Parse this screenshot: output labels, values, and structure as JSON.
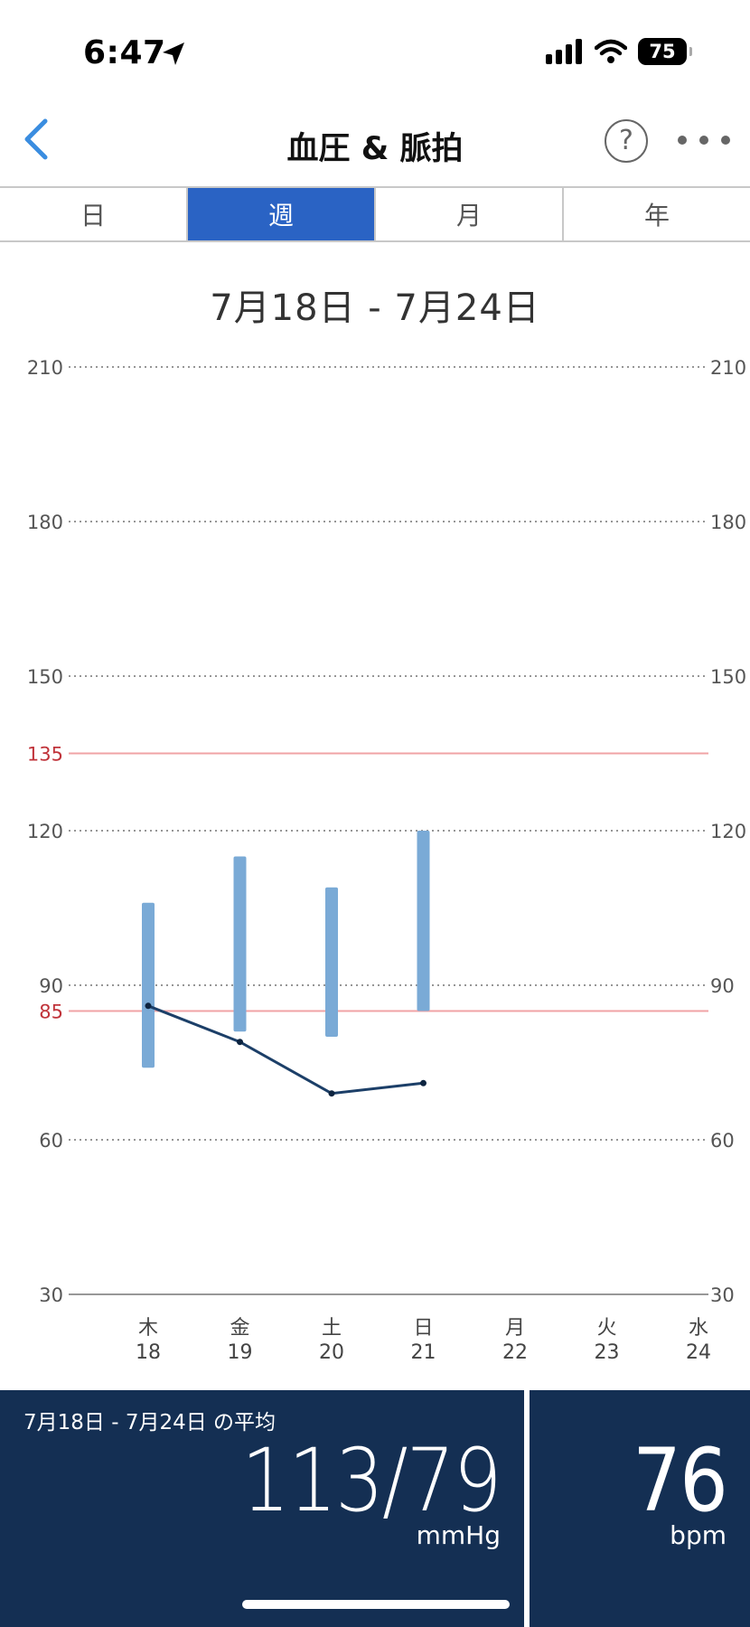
{
  "status": {
    "time": "6:47",
    "battery": "75"
  },
  "nav": {
    "title": "血圧 & 脈拍",
    "help_label": "?"
  },
  "tabs": [
    {
      "label": "日",
      "active": false
    },
    {
      "label": "週",
      "active": true
    },
    {
      "label": "月",
      "active": false
    },
    {
      "label": "年",
      "active": false
    }
  ],
  "date_range": "7月18日 - 7月24日",
  "chart_data": {
    "type": "bar",
    "title": "",
    "y_ticks": [
      30,
      60,
      90,
      120,
      150,
      180,
      210
    ],
    "threshold_lines": [
      135,
      85
    ],
    "ylim": [
      30,
      210
    ],
    "categories": [
      {
        "weekday": "木",
        "day": "18"
      },
      {
        "weekday": "金",
        "day": "19"
      },
      {
        "weekday": "土",
        "day": "20"
      },
      {
        "weekday": "日",
        "day": "21"
      },
      {
        "weekday": "月",
        "day": "22"
      },
      {
        "weekday": "火",
        "day": "23"
      },
      {
        "weekday": "水",
        "day": "24"
      }
    ],
    "series": [
      {
        "name": "",
        "type": "range",
        "values": [
          [
            74,
            106
          ],
          [
            81,
            115
          ],
          [
            80,
            109
          ],
          [
            85,
            120
          ],
          null,
          null,
          null
        ]
      },
      {
        "name": "",
        "type": "line",
        "values": [
          86,
          79,
          69,
          71,
          null,
          null,
          null
        ]
      }
    ],
    "colors": {
      "bar": "#7aaad6",
      "line": "#1c3f68",
      "threshold": "#f0a3a6",
      "threshold_label": "#c0333a"
    }
  },
  "summary": {
    "avg_label": "7月18日 - 7月24日 の平均",
    "bp": "113/79",
    "bp_unit": "mmHg",
    "pulse": "76",
    "pulse_unit": "bpm"
  }
}
